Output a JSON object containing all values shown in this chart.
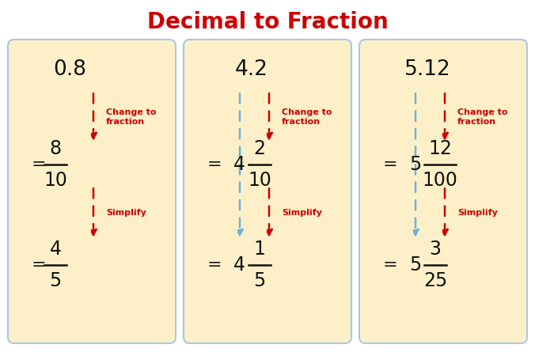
{
  "title": "Decimal to Fraction",
  "title_color": "#cc0000",
  "title_fontsize": 20,
  "bg_color": "#ffffff",
  "card_color": "#fdf0c8",
  "card_edge_color": "#a8c8e8",
  "arrow_red": "#cc0000",
  "arrow_blue": "#6ab4d8",
  "text_black": "#111111",
  "text_red": "#cc0000",
  "panels": [
    {
      "decimal": "0.8",
      "step1_whole": "",
      "step1_num": "8",
      "step1_den": "10",
      "step2_whole": "",
      "step2_num": "4",
      "step2_den": "5",
      "has_blue": false
    },
    {
      "decimal": "4.2",
      "step1_whole": "4",
      "step1_num": "2",
      "step1_den": "10",
      "step2_whole": "4",
      "step2_num": "1",
      "step2_den": "5",
      "has_blue": true
    },
    {
      "decimal": "5.12",
      "step1_whole": "5",
      "step1_num": "12",
      "step1_den": "100",
      "step2_whole": "5",
      "step2_num": "3",
      "step2_den": "25",
      "has_blue": true
    }
  ]
}
